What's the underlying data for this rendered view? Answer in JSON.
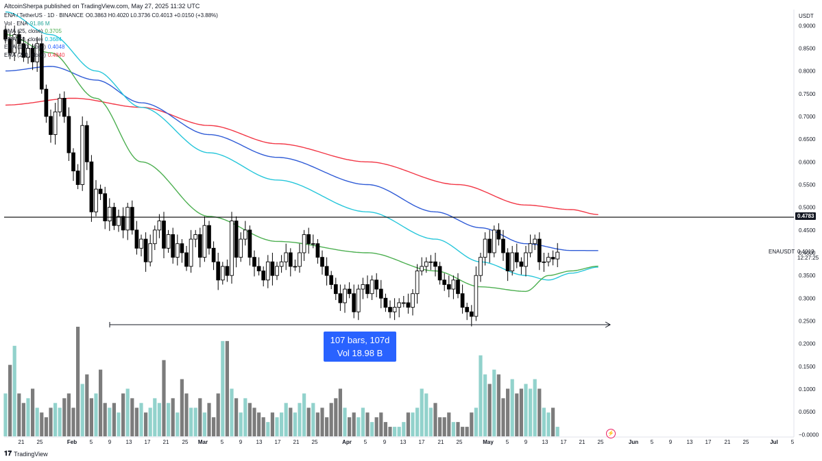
{
  "header": {
    "published": "AltcoinSherpa published on TradingView.com, May 27, 2025 11:32 UTC",
    "logo_text": "TradingView"
  },
  "legend": [
    {
      "label": "ENA / TetherUS · 1D · BINANCE",
      "value": "O0.3863 H0.4020 L0.3736 C0.4013 +0.0150 (+3.88%)",
      "color": "#131722"
    },
    {
      "label": "Vol · ENA",
      "value": "91.86 M",
      "color": "#26a69a"
    },
    {
      "label": "EMA (25, close)",
      "value": "0.3705",
      "color": "#4caf50"
    },
    {
      "label": "EMA (50, close)",
      "value": "0.3684",
      "color": "#00bcd4"
    },
    {
      "label": "EMA (100, close)",
      "value": "0.4048",
      "color": "#2962ff"
    },
    {
      "label": "EMA (200, close)",
      "value": "0.4840",
      "color": "#f23645"
    }
  ],
  "axis_currency": "USDT",
  "measure_box": {
    "line1": "107 bars, 107d",
    "line2": "Vol 18.98 B"
  },
  "price_tags": {
    "level": "0.4783",
    "symbol": "ENAUSDT",
    "last": "0.4013",
    "countdown": "12:27:25"
  },
  "colors": {
    "ema25": "#4caf50",
    "ema50": "#26c6da",
    "ema100": "#2f5bd6",
    "ema200": "#f23645",
    "hline": "#000000",
    "measure_box": "#2962ff"
  },
  "chart_data": {
    "type": "candlestick",
    "symbol": "ENA / TetherUS",
    "interval": "1D",
    "exchange": "BINANCE",
    "ylim": [
      -0.01,
      0.92
    ],
    "y_ticks": [
      "0.9000",
      "0.8500",
      "0.8000",
      "0.7500",
      "0.7000",
      "0.6500",
      "0.6000",
      "0.5500",
      "0.5000",
      "0.4500",
      "0.4000",
      "0.3500",
      "0.3000",
      "0.2500",
      "0.2000",
      "0.1500",
      "0.1000",
      "0.0500",
      "0.0000"
    ],
    "x_ticks": [
      "21",
      "25",
      "Feb",
      "5",
      "9",
      "13",
      "17",
      "21",
      "25",
      "Mar",
      "5",
      "9",
      "13",
      "17",
      "21",
      "25",
      "Apr",
      "5",
      "9",
      "13",
      "17",
      "21",
      "25",
      "May",
      "5",
      "9",
      "13",
      "17",
      "21",
      "25",
      "Jun",
      "5",
      "9",
      "13",
      "17",
      "21",
      "25",
      "Jul",
      "5"
    ],
    "closes": [
      0.87,
      0.84,
      0.88,
      0.86,
      0.83,
      0.85,
      0.82,
      0.86,
      0.76,
      0.7,
      0.66,
      0.71,
      0.74,
      0.7,
      0.62,
      0.58,
      0.55,
      0.68,
      0.6,
      0.49,
      0.54,
      0.53,
      0.47,
      0.5,
      0.46,
      0.48,
      0.45,
      0.5,
      0.45,
      0.41,
      0.43,
      0.38,
      0.42,
      0.45,
      0.47,
      0.41,
      0.44,
      0.39,
      0.42,
      0.4,
      0.37,
      0.43,
      0.44,
      0.39,
      0.46,
      0.41,
      0.38,
      0.34,
      0.37,
      0.35,
      0.47,
      0.39,
      0.43,
      0.45,
      0.39,
      0.37,
      0.36,
      0.34,
      0.38,
      0.35,
      0.37,
      0.38,
      0.4,
      0.37,
      0.37,
      0.4,
      0.44,
      0.42,
      0.42,
      0.39,
      0.37,
      0.35,
      0.33,
      0.31,
      0.29,
      0.32,
      0.31,
      0.27,
      0.32,
      0.33,
      0.31,
      0.34,
      0.32,
      0.3,
      0.28,
      0.27,
      0.28,
      0.29,
      0.29,
      0.28,
      0.31,
      0.36,
      0.37,
      0.38,
      0.38,
      0.37,
      0.34,
      0.33,
      0.32,
      0.34,
      0.31,
      0.28,
      0.27,
      0.26,
      0.35,
      0.39,
      0.43,
      0.4,
      0.45,
      0.43,
      0.4,
      0.36,
      0.4,
      0.38,
      0.37,
      0.4,
      0.42,
      0.43,
      0.38,
      0.38,
      0.39,
      0.3863,
      0.4013
    ],
    "ema25": {
      "anchors": [
        [
          0,
          0.88
        ],
        [
          10,
          0.84
        ],
        [
          20,
          0.74
        ],
        [
          30,
          0.6
        ],
        [
          45,
          0.48
        ],
        [
          60,
          0.425
        ],
        [
          80,
          0.4
        ],
        [
          95,
          0.36
        ],
        [
          105,
          0.325
        ],
        [
          115,
          0.315
        ],
        [
          120,
          0.35
        ],
        [
          125,
          0.36
        ],
        [
          131,
          0.3705
        ]
      ]
    },
    "ema50": {
      "anchors": [
        [
          0,
          0.93
        ],
        [
          10,
          0.88
        ],
        [
          20,
          0.8
        ],
        [
          30,
          0.72
        ],
        [
          45,
          0.62
        ],
        [
          60,
          0.56
        ],
        [
          80,
          0.49
        ],
        [
          95,
          0.43
        ],
        [
          105,
          0.38
        ],
        [
          115,
          0.35
        ],
        [
          120,
          0.34
        ],
        [
          125,
          0.355
        ],
        [
          131,
          0.3684
        ]
      ]
    },
    "ema100": {
      "anchors": [
        [
          0,
          0.8
        ],
        [
          10,
          0.81
        ],
        [
          20,
          0.78
        ],
        [
          30,
          0.73
        ],
        [
          45,
          0.66
        ],
        [
          60,
          0.61
        ],
        [
          80,
          0.55
        ],
        [
          95,
          0.49
        ],
        [
          105,
          0.455
        ],
        [
          115,
          0.42
        ],
        [
          125,
          0.405
        ],
        [
          131,
          0.4048
        ]
      ]
    },
    "ema200": {
      "anchors": [
        [
          0,
          0.725
        ],
        [
          15,
          0.74
        ],
        [
          30,
          0.72
        ],
        [
          45,
          0.68
        ],
        [
          60,
          0.64
        ],
        [
          80,
          0.6
        ],
        [
          100,
          0.55
        ],
        [
          115,
          0.505
        ],
        [
          125,
          0.495
        ],
        [
          131,
          0.484
        ]
      ]
    },
    "hline": 0.4783,
    "volume_sample": [
      0.09,
      0.15,
      0.19,
      0.09,
      0.07,
      0.08,
      0.1,
      0.06,
      0.05,
      0.04,
      0.06,
      0.07,
      0.06,
      0.08,
      0.09,
      0.06,
      0.23,
      0.11,
      0.13,
      0.08,
      0.09,
      0.14,
      0.07,
      0.06,
      0.07,
      0.05,
      0.09,
      0.1,
      0.08,
      0.06,
      0.07,
      0.05,
      0.06,
      0.08,
      0.07,
      0.16,
      0.07,
      0.08,
      0.05,
      0.12,
      0.09,
      0.06,
      0.06,
      0.08,
      0.05,
      0.07,
      0.04,
      0.09,
      0.2,
      0.2,
      0.1,
      0.08,
      0.05,
      0.08,
      0.07,
      0.06,
      0.05,
      0.04,
      0.03,
      0.05,
      0.04,
      0.05,
      0.07,
      0.06,
      0.05,
      0.07,
      0.09,
      0.06,
      0.07,
      0.05,
      0.06,
      0.04,
      0.07,
      0.08,
      0.1,
      0.06,
      0.04,
      0.05,
      0.04,
      0.06,
      0.05,
      0.03,
      0.04,
      0.05,
      0.03,
      0.02,
      0.02,
      0.02,
      0.03,
      0.05,
      0.05,
      0.06,
      0.1,
      0.09,
      0.06,
      0.07,
      0.04,
      0.04,
      0.05,
      0.03,
      0.03,
      0.02,
      0.02,
      0.05,
      0.06,
      0.17,
      0.13,
      0.11,
      0.14,
      0.13,
      0.08,
      0.1,
      0.12,
      0.09,
      0.1,
      0.11,
      0.1,
      0.12,
      0.1,
      0.06,
      0.05,
      0.06,
      0.02
    ]
  }
}
